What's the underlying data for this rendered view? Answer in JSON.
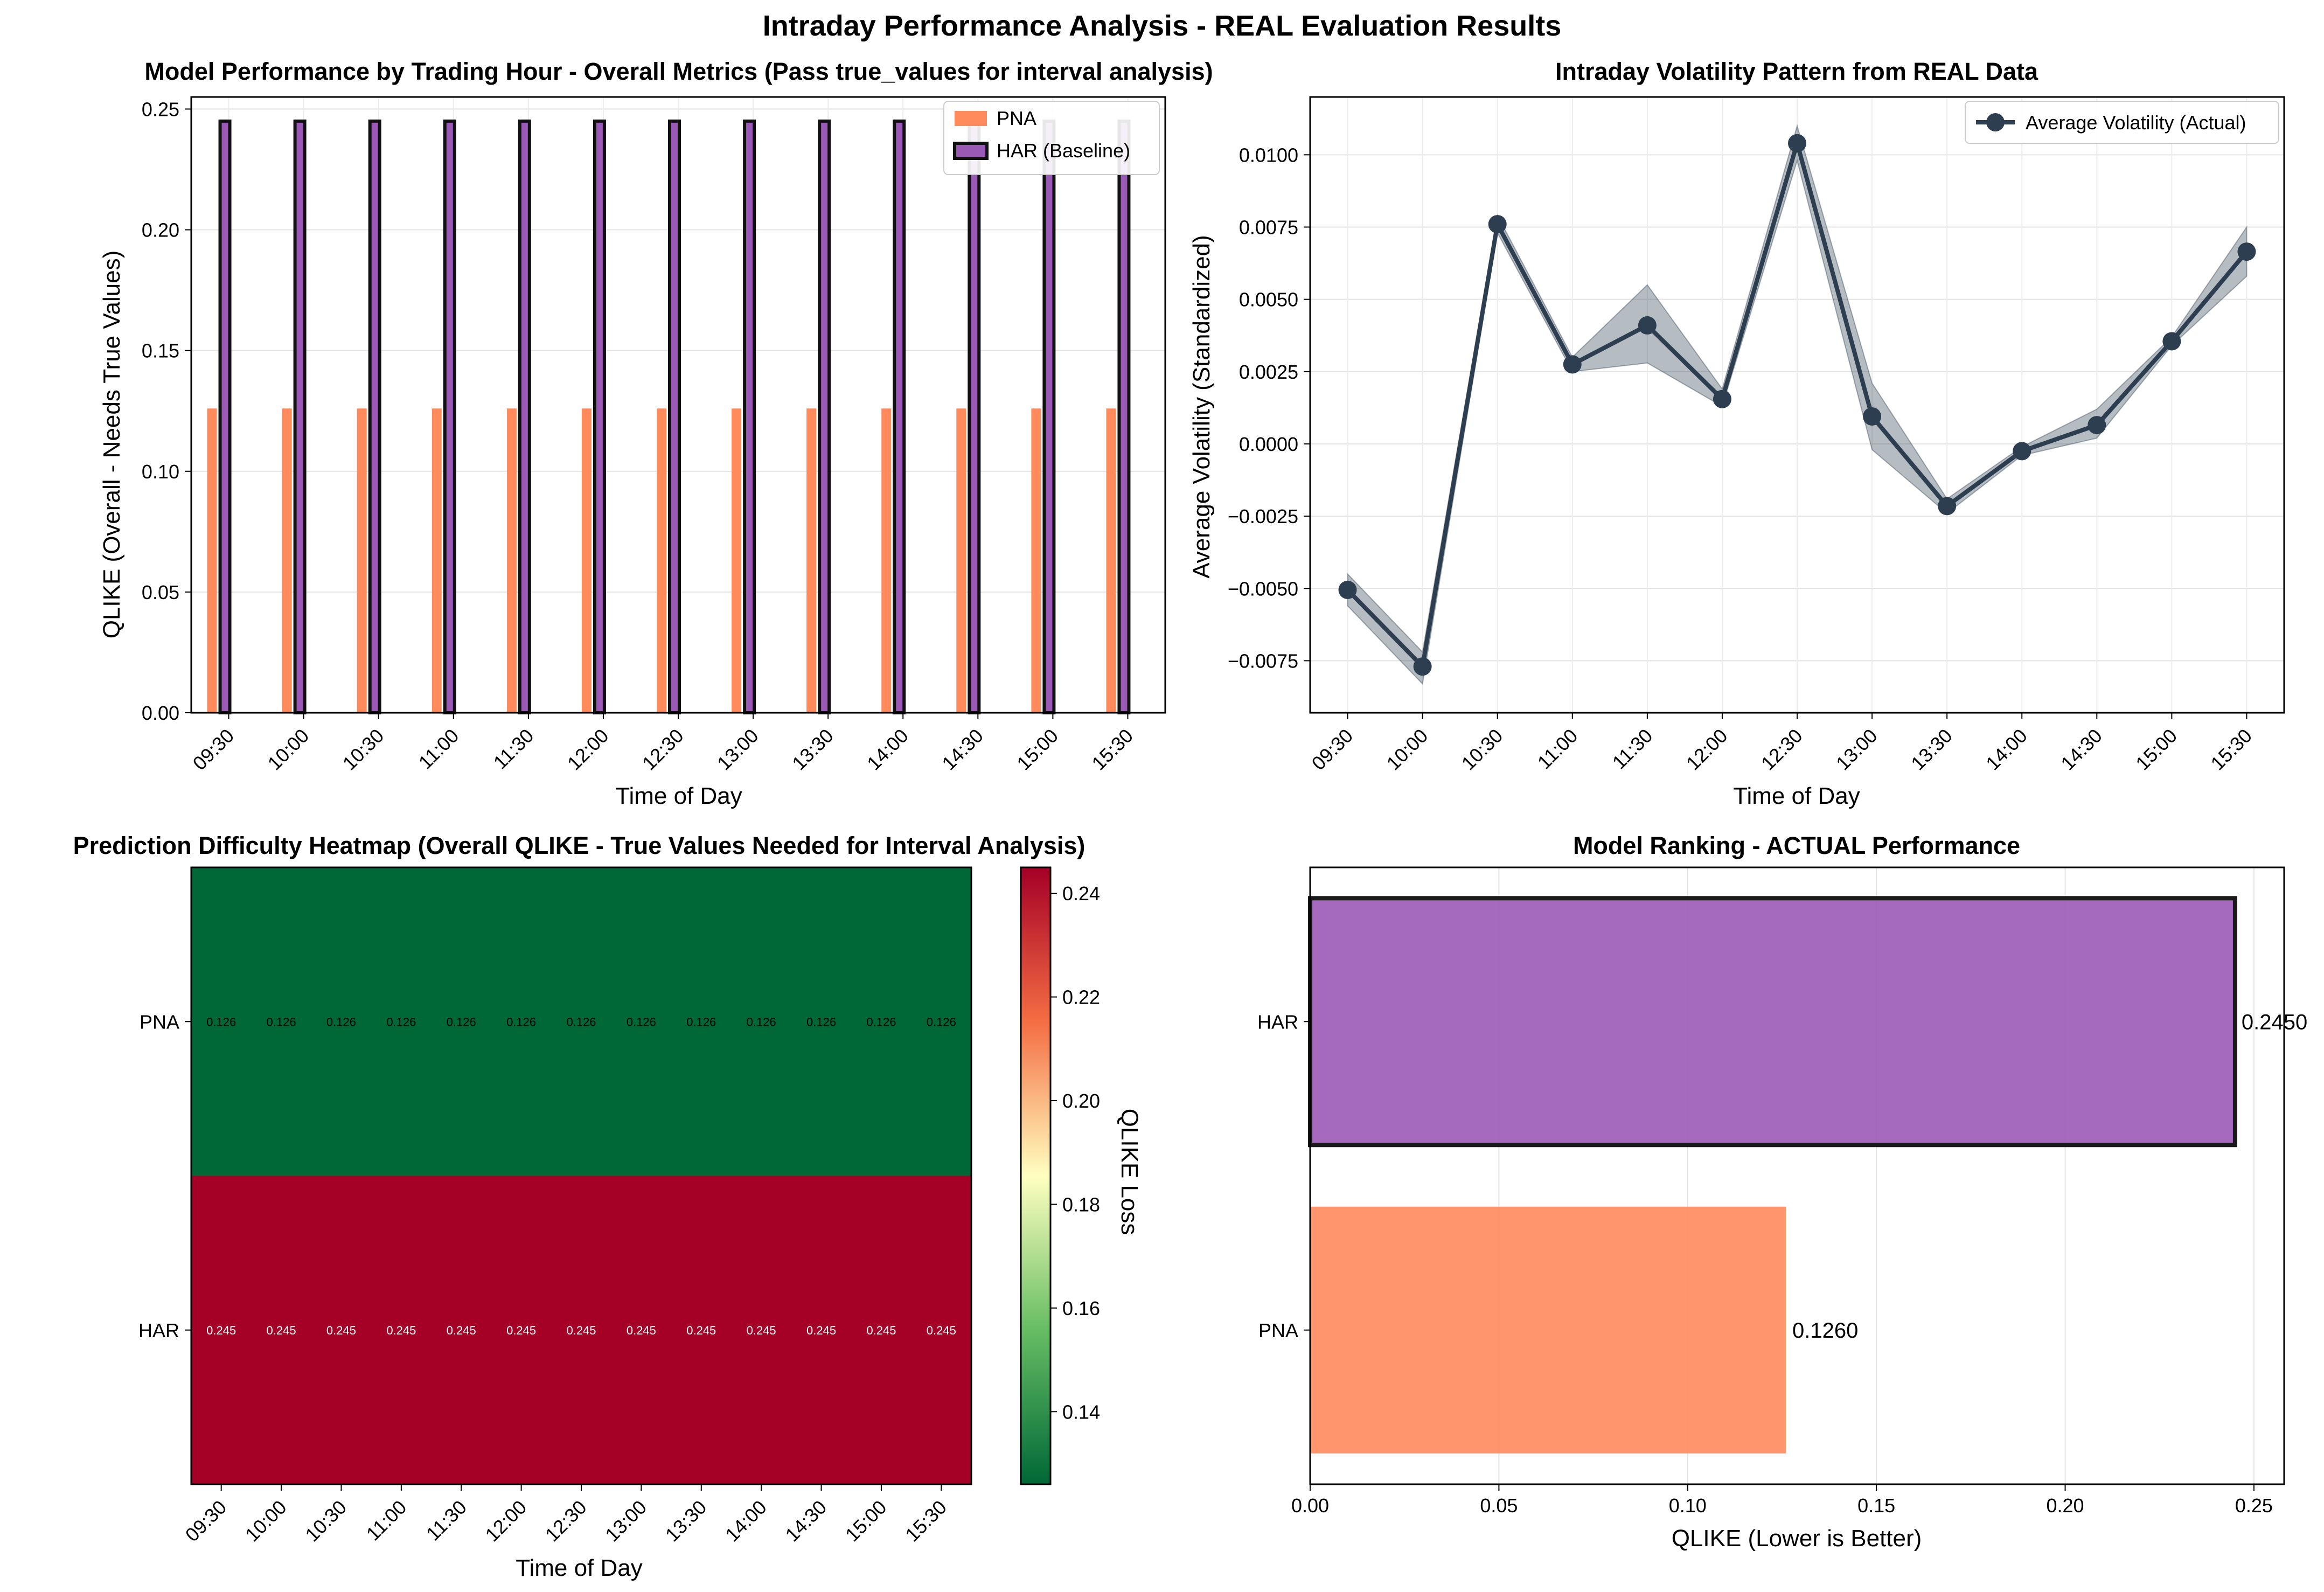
{
  "figure_title": "Intraday Performance Analysis - REAL Evaluation Results",
  "colors": {
    "pna": "#ff8a5c",
    "har": "#9b59b6",
    "har_edge": "#111111",
    "volatility_line": "#2c3e50",
    "heatmap_low": "#006837",
    "heatmap_high": "#a50026"
  },
  "chart_data": [
    {
      "id": "hourly",
      "type": "bar",
      "title": "Model Performance by Trading Hour - Overall Metrics (Pass true_values for interval analysis)",
      "xlabel": "Time of Day",
      "ylabel": "QLIKE (Overall - Needs True Values)",
      "categories": [
        "09:30",
        "10:00",
        "10:30",
        "11:00",
        "11:30",
        "12:00",
        "12:30",
        "13:00",
        "13:30",
        "14:00",
        "14:30",
        "15:00",
        "15:30"
      ],
      "series": [
        {
          "name": "PNA",
          "values": [
            0.126,
            0.126,
            0.126,
            0.126,
            0.126,
            0.126,
            0.126,
            0.126,
            0.126,
            0.126,
            0.126,
            0.126,
            0.126
          ]
        },
        {
          "name": "HAR (Baseline)",
          "values": [
            0.245,
            0.245,
            0.245,
            0.245,
            0.245,
            0.245,
            0.245,
            0.245,
            0.245,
            0.245,
            0.245,
            0.245,
            0.245
          ]
        }
      ],
      "ylim": [
        0,
        0.255
      ],
      "yticks": [
        "0.00",
        "0.05",
        "0.10",
        "0.15",
        "0.20",
        "0.25"
      ],
      "legend": "top-right",
      "grid": true
    },
    {
      "id": "volatility",
      "type": "line",
      "title": "Intraday Volatility Pattern from REAL Data",
      "xlabel": "Time of Day",
      "ylabel": "Average Volatility (Standardized)",
      "categories": [
        "09:30",
        "10:00",
        "10:30",
        "11:00",
        "11:30",
        "12:00",
        "12:30",
        "13:00",
        "13:30",
        "14:00",
        "14:30",
        "15:00",
        "15:30"
      ],
      "series": [
        {
          "name": "Average Volatility (Actual)",
          "values": [
            -0.00505,
            -0.0077,
            0.0076,
            0.00275,
            0.0041,
            0.00155,
            0.0104,
            0.00095,
            -0.00215,
            -0.00025,
            0.00065,
            0.00355,
            0.00665
          ]
        }
      ],
      "band_upper": [
        -0.0045,
        -0.0072,
        0.0079,
        0.003,
        0.0055,
        0.0019,
        0.011,
        0.0021,
        -0.0019,
        -0.0001,
        0.0012,
        0.0037,
        0.0075
      ],
      "band_lower": [
        -0.0056,
        -0.0083,
        0.0073,
        0.0025,
        0.0028,
        0.0013,
        0.0098,
        -0.0002,
        -0.0024,
        -0.0004,
        0.0002,
        0.0034,
        0.0058
      ],
      "ylim": [
        -0.0093,
        0.012
      ],
      "yticks": [
        "−0.0075",
        "−0.0050",
        "−0.0025",
        "0.0000",
        "0.0025",
        "0.0050",
        "0.0075",
        "0.0100"
      ],
      "ytick_values": [
        -0.0075,
        -0.005,
        -0.0025,
        0,
        0.0025,
        0.005,
        0.0075,
        0.01
      ],
      "legend": "top-right",
      "grid": true
    },
    {
      "id": "heatmap",
      "type": "heatmap",
      "title": "Prediction Difficulty Heatmap (Overall QLIKE - True Values Needed for Interval Analysis)",
      "xlabel": "Time of Day",
      "categories": [
        "09:30",
        "10:00",
        "10:30",
        "11:00",
        "11:30",
        "12:00",
        "12:30",
        "13:00",
        "13:30",
        "14:00",
        "14:30",
        "15:00",
        "15:30"
      ],
      "rows": [
        "PNA",
        "HAR"
      ],
      "values": [
        [
          0.126,
          0.126,
          0.126,
          0.126,
          0.126,
          0.126,
          0.126,
          0.126,
          0.126,
          0.126,
          0.126,
          0.126,
          0.126
        ],
        [
          0.245,
          0.245,
          0.245,
          0.245,
          0.245,
          0.245,
          0.245,
          0.245,
          0.245,
          0.245,
          0.245,
          0.245,
          0.245
        ]
      ],
      "cell_labels": [
        [
          "0.126",
          "0.126",
          "0.126",
          "0.126",
          "0.126",
          "0.126",
          "0.126",
          "0.126",
          "0.126",
          "0.126",
          "0.126",
          "0.126",
          "0.126"
        ],
        [
          "0.245",
          "0.245",
          "0.245",
          "0.245",
          "0.245",
          "0.245",
          "0.245",
          "0.245",
          "0.245",
          "0.245",
          "0.245",
          "0.245",
          "0.245"
        ]
      ],
      "colorbar_label": "QLIKE Loss",
      "colorbar_range": [
        0.126,
        0.245
      ],
      "colorbar_ticks": [
        "0.14",
        "0.16",
        "0.18",
        "0.20",
        "0.22",
        "0.24"
      ],
      "colorbar_tick_values": [
        0.14,
        0.16,
        0.18,
        0.2,
        0.22,
        0.24
      ]
    },
    {
      "id": "ranking",
      "type": "bar",
      "orientation": "horizontal",
      "title": "Model Ranking - ACTUAL Performance",
      "xlabel": "QLIKE (Lower is Better)",
      "categories": [
        "HAR",
        "PNA"
      ],
      "values": [
        0.245,
        0.126
      ],
      "value_labels": [
        "0.2450",
        "0.1260"
      ],
      "xlim": [
        0,
        0.258
      ],
      "xticks": [
        "0.00",
        "0.05",
        "0.10",
        "0.15",
        "0.20",
        "0.25"
      ],
      "grid": true
    }
  ]
}
